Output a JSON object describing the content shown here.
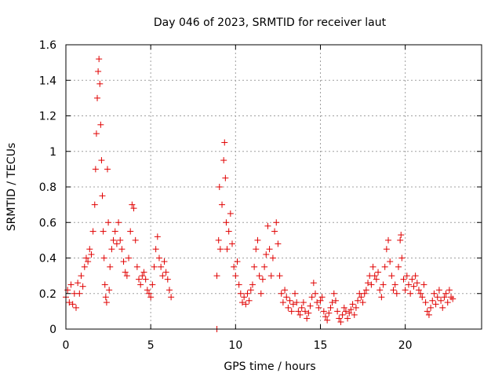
{
  "chart_data": {
    "type": "scatter",
    "title": "Day 046 of 2023, SRMTID for receiver laut",
    "xlabel": "GPS time / hours",
    "ylabel": "SRMTID / TECUs",
    "xlim": [
      0,
      24.5
    ],
    "ylim": [
      0,
      1.6
    ],
    "xticks": [
      0,
      5,
      10,
      15,
      20
    ],
    "yticks": [
      0,
      0.2,
      0.4,
      0.6,
      0.8,
      1.0,
      1.2,
      1.4,
      1.6
    ],
    "xtick_labels": [
      "0",
      "5",
      "10",
      "15",
      "20"
    ],
    "ytick_labels": [
      "0",
      "0.2",
      "0.4",
      "0.6",
      "0.8",
      "1",
      "1.2",
      "1.4",
      "1.6"
    ],
    "grid": true,
    "marker": "plus",
    "color": "#e00000",
    "series": [
      {
        "name": "SRMTID",
        "points": [
          [
            0.0,
            0.18
          ],
          [
            0.1,
            0.22
          ],
          [
            0.2,
            0.15
          ],
          [
            0.3,
            0.25
          ],
          [
            0.4,
            0.14
          ],
          [
            0.5,
            0.2
          ],
          [
            0.6,
            0.12
          ],
          [
            0.7,
            0.26
          ],
          [
            0.8,
            0.2
          ],
          [
            0.9,
            0.3
          ],
          [
            1.0,
            0.24
          ],
          [
            1.1,
            0.35
          ],
          [
            1.2,
            0.4
          ],
          [
            1.3,
            0.38
          ],
          [
            1.4,
            0.45
          ],
          [
            1.5,
            0.42
          ],
          [
            1.6,
            0.55
          ],
          [
            1.7,
            0.7
          ],
          [
            1.75,
            0.9
          ],
          [
            1.8,
            1.1
          ],
          [
            1.85,
            1.3
          ],
          [
            1.9,
            1.45
          ],
          [
            1.95,
            1.52
          ],
          [
            2.0,
            1.38
          ],
          [
            2.05,
            1.15
          ],
          [
            2.1,
            0.95
          ],
          [
            2.15,
            0.75
          ],
          [
            2.2,
            0.55
          ],
          [
            2.25,
            0.4
          ],
          [
            2.3,
            0.25
          ],
          [
            2.35,
            0.18
          ],
          [
            2.4,
            0.15
          ],
          [
            2.45,
            0.9
          ],
          [
            2.5,
            0.6
          ],
          [
            2.55,
            0.22
          ],
          [
            2.6,
            0.35
          ],
          [
            2.7,
            0.45
          ],
          [
            2.8,
            0.5
          ],
          [
            2.9,
            0.55
          ],
          [
            3.0,
            0.48
          ],
          [
            3.1,
            0.6
          ],
          [
            3.2,
            0.5
          ],
          [
            3.3,
            0.45
          ],
          [
            3.4,
            0.38
          ],
          [
            3.5,
            0.32
          ],
          [
            3.6,
            0.3
          ],
          [
            3.7,
            0.4
          ],
          [
            3.8,
            0.55
          ],
          [
            3.9,
            0.7
          ],
          [
            4.0,
            0.68
          ],
          [
            4.1,
            0.5
          ],
          [
            4.2,
            0.35
          ],
          [
            4.3,
            0.28
          ],
          [
            4.4,
            0.25
          ],
          [
            4.5,
            0.3
          ],
          [
            4.6,
            0.32
          ],
          [
            4.7,
            0.28
          ],
          [
            4.8,
            0.22
          ],
          [
            4.9,
            0.2
          ],
          [
            5.0,
            0.18
          ],
          [
            5.1,
            0.25
          ],
          [
            5.2,
            0.35
          ],
          [
            5.3,
            0.45
          ],
          [
            5.4,
            0.52
          ],
          [
            5.5,
            0.4
          ],
          [
            5.6,
            0.35
          ],
          [
            5.7,
            0.3
          ],
          [
            5.8,
            0.38
          ],
          [
            5.9,
            0.32
          ],
          [
            6.0,
            0.28
          ],
          [
            6.1,
            0.22
          ],
          [
            6.2,
            0.18
          ],
          [
            8.9,
            0.0
          ],
          [
            8.9,
            0.3
          ],
          [
            9.0,
            0.5
          ],
          [
            9.05,
            0.8
          ],
          [
            9.1,
            0.45
          ],
          [
            9.2,
            0.7
          ],
          [
            9.3,
            0.95
          ],
          [
            9.35,
            1.05
          ],
          [
            9.4,
            0.85
          ],
          [
            9.45,
            0.6
          ],
          [
            9.5,
            0.45
          ],
          [
            9.6,
            0.55
          ],
          [
            9.7,
            0.65
          ],
          [
            9.8,
            0.48
          ],
          [
            9.9,
            0.35
          ],
          [
            10.0,
            0.3
          ],
          [
            10.1,
            0.38
          ],
          [
            10.2,
            0.25
          ],
          [
            10.3,
            0.2
          ],
          [
            10.4,
            0.15
          ],
          [
            10.5,
            0.18
          ],
          [
            10.6,
            0.14
          ],
          [
            10.7,
            0.2
          ],
          [
            10.8,
            0.16
          ],
          [
            10.9,
            0.22
          ],
          [
            11.0,
            0.25
          ],
          [
            11.1,
            0.35
          ],
          [
            11.2,
            0.45
          ],
          [
            11.3,
            0.5
          ],
          [
            11.4,
            0.3
          ],
          [
            11.5,
            0.2
          ],
          [
            11.6,
            0.28
          ],
          [
            11.7,
            0.35
          ],
          [
            11.8,
            0.42
          ],
          [
            11.9,
            0.58
          ],
          [
            12.0,
            0.45
          ],
          [
            12.1,
            0.3
          ],
          [
            12.2,
            0.4
          ],
          [
            12.3,
            0.55
          ],
          [
            12.4,
            0.6
          ],
          [
            12.5,
            0.48
          ],
          [
            12.6,
            0.3
          ],
          [
            12.7,
            0.2
          ],
          [
            12.8,
            0.15
          ],
          [
            12.9,
            0.22
          ],
          [
            13.0,
            0.18
          ],
          [
            13.1,
            0.12
          ],
          [
            13.2,
            0.16
          ],
          [
            13.3,
            0.1
          ],
          [
            13.4,
            0.14
          ],
          [
            13.5,
            0.2
          ],
          [
            13.6,
            0.15
          ],
          [
            13.7,
            0.1
          ],
          [
            13.8,
            0.08
          ],
          [
            13.9,
            0.12
          ],
          [
            14.0,
            0.15
          ],
          [
            14.1,
            0.1
          ],
          [
            14.2,
            0.06
          ],
          [
            14.3,
            0.09
          ],
          [
            14.4,
            0.13
          ],
          [
            14.5,
            0.18
          ],
          [
            14.6,
            0.26
          ],
          [
            14.7,
            0.2
          ],
          [
            14.8,
            0.15
          ],
          [
            14.9,
            0.12
          ],
          [
            15.0,
            0.16
          ],
          [
            15.1,
            0.18
          ],
          [
            15.2,
            0.1
          ],
          [
            15.3,
            0.07
          ],
          [
            15.4,
            0.05
          ],
          [
            15.5,
            0.09
          ],
          [
            15.6,
            0.12
          ],
          [
            15.7,
            0.15
          ],
          [
            15.8,
            0.2
          ],
          [
            15.9,
            0.16
          ],
          [
            16.0,
            0.1
          ],
          [
            16.1,
            0.06
          ],
          [
            16.2,
            0.04
          ],
          [
            16.3,
            0.08
          ],
          [
            16.4,
            0.12
          ],
          [
            16.5,
            0.1
          ],
          [
            16.6,
            0.06
          ],
          [
            16.7,
            0.09
          ],
          [
            16.8,
            0.11
          ],
          [
            16.9,
            0.14
          ],
          [
            17.0,
            0.08
          ],
          [
            17.1,
            0.12
          ],
          [
            17.2,
            0.16
          ],
          [
            17.3,
            0.2
          ],
          [
            17.4,
            0.18
          ],
          [
            17.5,
            0.15
          ],
          [
            17.6,
            0.2
          ],
          [
            17.7,
            0.22
          ],
          [
            17.8,
            0.26
          ],
          [
            17.9,
            0.3
          ],
          [
            18.0,
            0.25
          ],
          [
            18.1,
            0.35
          ],
          [
            18.2,
            0.3
          ],
          [
            18.3,
            0.28
          ],
          [
            18.4,
            0.32
          ],
          [
            18.5,
            0.22
          ],
          [
            18.6,
            0.18
          ],
          [
            18.7,
            0.25
          ],
          [
            18.8,
            0.35
          ],
          [
            18.9,
            0.45
          ],
          [
            19.0,
            0.5
          ],
          [
            19.1,
            0.38
          ],
          [
            19.2,
            0.3
          ],
          [
            19.3,
            0.22
          ],
          [
            19.4,
            0.25
          ],
          [
            19.5,
            0.2
          ],
          [
            19.6,
            0.35
          ],
          [
            19.7,
            0.5
          ],
          [
            19.75,
            0.53
          ],
          [
            19.8,
            0.4
          ],
          [
            19.9,
            0.28
          ],
          [
            20.0,
            0.22
          ],
          [
            20.1,
            0.3
          ],
          [
            20.2,
            0.25
          ],
          [
            20.3,
            0.2
          ],
          [
            20.4,
            0.28
          ],
          [
            20.5,
            0.24
          ],
          [
            20.6,
            0.3
          ],
          [
            20.7,
            0.26
          ],
          [
            20.8,
            0.22
          ],
          [
            20.9,
            0.2
          ],
          [
            21.0,
            0.18
          ],
          [
            21.1,
            0.25
          ],
          [
            21.2,
            0.15
          ],
          [
            21.3,
            0.1
          ],
          [
            21.4,
            0.08
          ],
          [
            21.5,
            0.12
          ],
          [
            21.6,
            0.16
          ],
          [
            21.7,
            0.2
          ],
          [
            21.8,
            0.14
          ],
          [
            21.9,
            0.18
          ],
          [
            22.0,
            0.22
          ],
          [
            22.1,
            0.16
          ],
          [
            22.2,
            0.12
          ],
          [
            22.3,
            0.18
          ],
          [
            22.4,
            0.2
          ],
          [
            22.5,
            0.15
          ],
          [
            22.6,
            0.22
          ],
          [
            22.7,
            0.18
          ],
          [
            22.8,
            0.17
          ]
        ]
      }
    ]
  }
}
